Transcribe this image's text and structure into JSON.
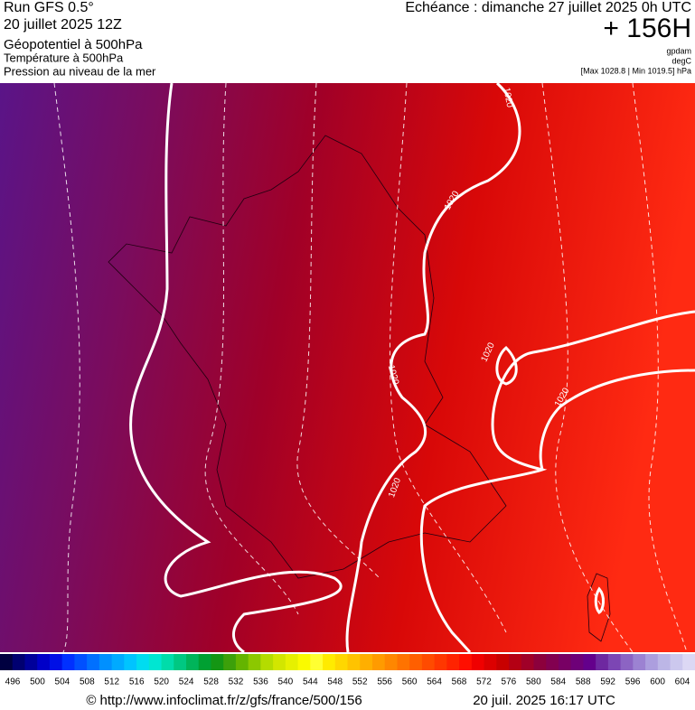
{
  "header": {
    "run": "Run GFS 0.5°",
    "run_date": "20 juillet 2025 12Z",
    "layer1": "Géopotentiel à 500hPa",
    "layer2": "Température à 500hPa",
    "layer3": "Pression au niveau de la mer",
    "valid": "Echéance : dimanche 27 juillet 2025 0h UTC",
    "lead": "+ 156H",
    "unit1": "gpdam",
    "unit2": "degC",
    "pressure_range": "[Max 1028.8 | Min 1019.5] hPa"
  },
  "map": {
    "isobar_labels": [
      "1020",
      "1020",
      "1020",
      "1020",
      "1020",
      "1020"
    ]
  },
  "scale": {
    "labels": [
      496,
      500,
      504,
      508,
      512,
      516,
      520,
      524,
      528,
      532,
      536,
      540,
      544,
      548,
      552,
      556,
      560,
      564,
      568,
      572,
      576,
      580,
      584,
      588,
      592,
      596,
      600,
      604
    ],
    "colors": [
      "#000040",
      "#000070",
      "#00009a",
      "#0000c8",
      "#0010e6",
      "#0030ff",
      "#0050ff",
      "#0070ff",
      "#0090ff",
      "#00aaff",
      "#00c4ff",
      "#00dcf0",
      "#00e6d2",
      "#00dcaa",
      "#00c882",
      "#00b45a",
      "#00a032",
      "#149614",
      "#3ca00a",
      "#64b400",
      "#8cc800",
      "#b4dc00",
      "#d2e600",
      "#e6f000",
      "#fafa00",
      "#ffff32",
      "#ffeb00",
      "#ffd700",
      "#ffc300",
      "#ffaf00",
      "#ff9b00",
      "#ff8700",
      "#ff7300",
      "#ff5f00",
      "#ff4b00",
      "#ff3700",
      "#ff2300",
      "#ff0f00",
      "#f00000",
      "#dc0000",
      "#c80000",
      "#b40014",
      "#a00028",
      "#8c003c",
      "#820050",
      "#780064",
      "#6e0078",
      "#64008c",
      "#6e28a0",
      "#7c46b4",
      "#8c64c3",
      "#9c82d2",
      "#ac9ede",
      "#bcb6e6",
      "#ccc8ee",
      "#dcd8f4"
    ]
  },
  "footer": {
    "url": "© http://www.infoclimat.fr/z/gfs/france/500/156",
    "generated": "20 juil. 2025 16:17 UTC"
  }
}
